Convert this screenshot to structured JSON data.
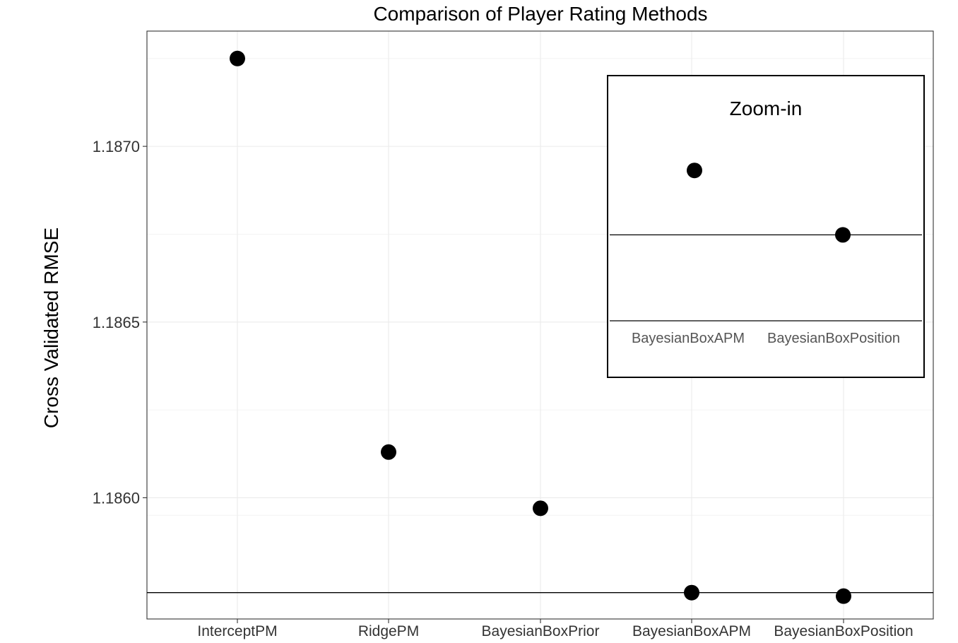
{
  "chart_data": {
    "type": "scatter",
    "title": "Comparison of Player Rating Methods",
    "xlabel": "",
    "ylabel": "Cross Validated RMSE",
    "categories": [
      "InterceptPM",
      "RidgePM",
      "BayesianBoxPrior",
      "BayesianBoxAPM",
      "BayesianBoxPosition"
    ],
    "values": [
      1.18725,
      1.18613,
      1.18597,
      1.18573,
      1.18572
    ],
    "y_ticks": [
      "1.1860",
      "1.1865",
      "1.1870"
    ],
    "y_tick_values": [
      1.186,
      1.1865,
      1.187
    ],
    "ylim": [
      1.185655,
      1.187328
    ],
    "reference_line": 1.18573,
    "grid": true,
    "inset": {
      "title": "Zoom-in",
      "categories": [
        "BayesianBoxAPM",
        "BayesianBoxPosition"
      ],
      "values": [
        1.185736,
        1.185724
      ],
      "ylim": [
        1.185708,
        1.185743
      ],
      "reference_line": 1.185724
    }
  }
}
